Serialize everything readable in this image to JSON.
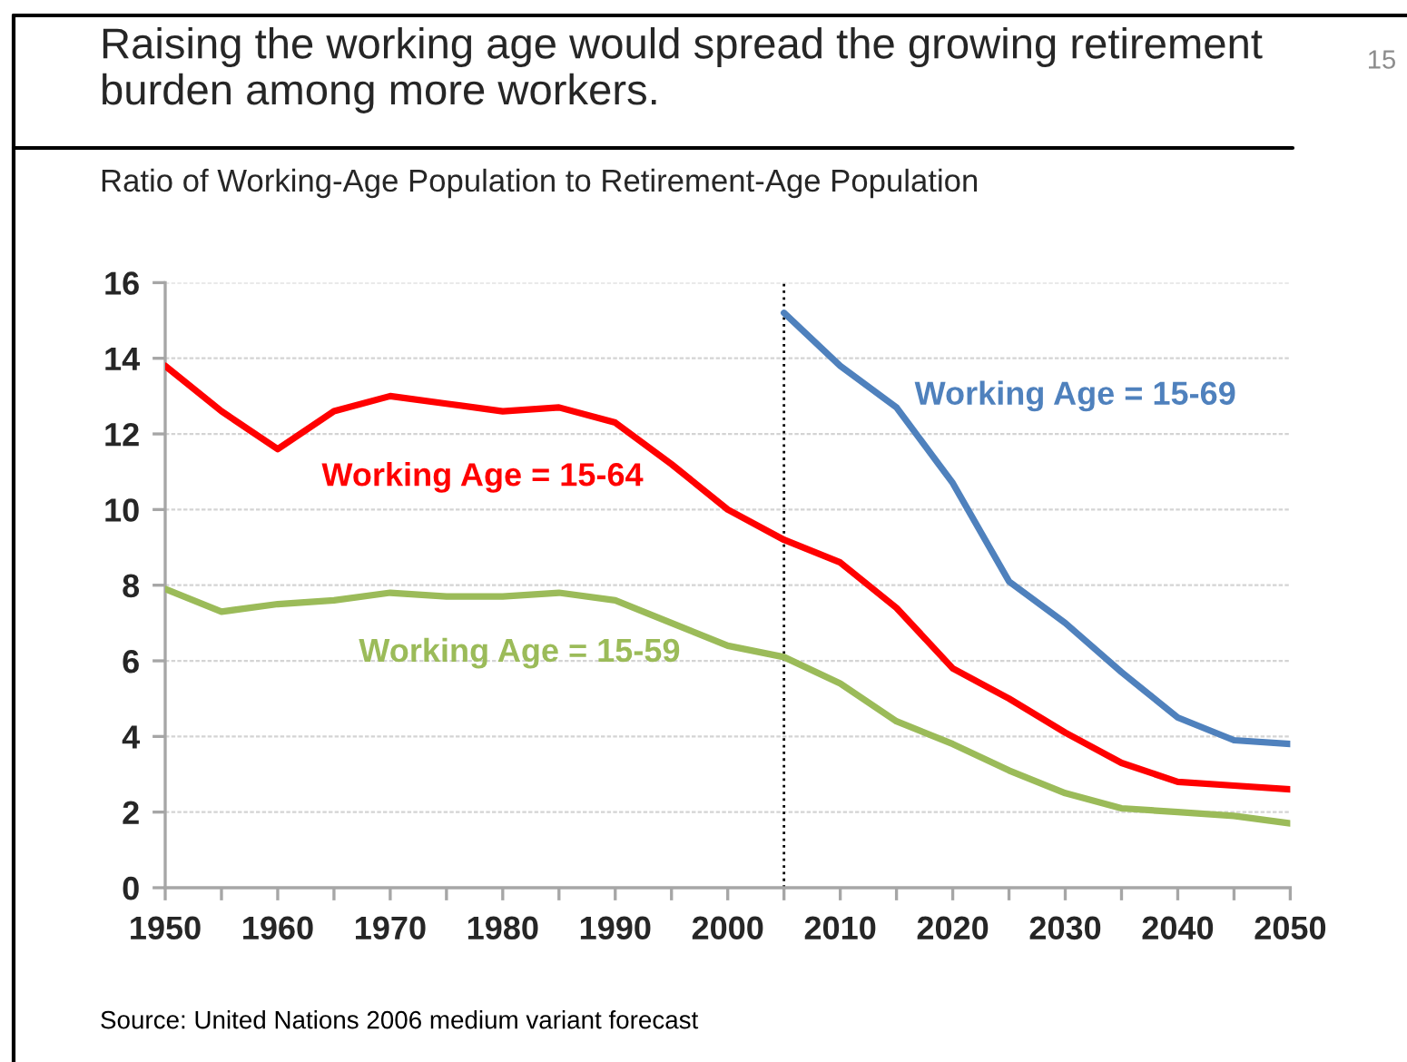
{
  "chart_data": {
    "type": "line",
    "title": "Raising the working age would spread the growing retirement burden among more workers.",
    "subtitle": "Ratio of Working-Age Population to Retirement-Age Population",
    "annotations": [
      "15",
      "Source: United Nations 2006 medium variant forecast"
    ],
    "x": [
      1950,
      1955,
      1960,
      1965,
      1970,
      1975,
      1980,
      1985,
      1990,
      1995,
      2000,
      2005,
      2010,
      2015,
      2020,
      2025,
      2030,
      2035,
      2040,
      2045,
      2050
    ],
    "series": [
      {
        "name": "Working Age = 15-64",
        "color": "#ff0000",
        "line_style": "solid",
        "values": [
          13.8,
          12.6,
          11.6,
          12.6,
          13.0,
          12.8,
          12.6,
          12.7,
          12.3,
          11.2,
          10.0,
          9.2,
          8.6,
          7.4,
          5.8,
          5.0,
          4.1,
          3.3,
          2.8,
          2.7,
          2.6
        ]
      },
      {
        "name": "Working Age = 15-59",
        "color": "#9bbb59",
        "line_style": "solid",
        "values": [
          7.9,
          7.3,
          7.5,
          7.6,
          7.8,
          7.7,
          7.7,
          7.8,
          7.6,
          7.0,
          6.4,
          6.1,
          5.4,
          4.4,
          3.8,
          3.1,
          2.5,
          2.1,
          2.0,
          1.9,
          1.7
        ]
      },
      {
        "name": "Working Age = 15-69",
        "color": "#4f81bd",
        "line_style": "solid",
        "x": [
          2005,
          2010,
          2015,
          2020,
          2025,
          2030,
          2035,
          2040,
          2045,
          2050
        ],
        "values": [
          15.2,
          13.8,
          12.7,
          10.7,
          8.1,
          7.0,
          5.7,
          4.5,
          3.9,
          3.8
        ]
      }
    ],
    "xlim": [
      1950,
      2050
    ],
    "xticks": [
      1950,
      {
        "value": 1955,
        "label": null
      },
      1960,
      {
        "value": 1965,
        "label": null
      },
      1970,
      {
        "value": 1975,
        "label": null
      },
      1980,
      {
        "value": 1985,
        "label": null
      },
      1990,
      {
        "value": 1995,
        "label": null
      },
      2000,
      {
        "value": 2005,
        "label": null
      },
      2010,
      {
        "value": 2015,
        "label": null
      },
      2020,
      {
        "value": 2025,
        "label": null
      },
      2030,
      {
        "value": 2035,
        "label": null
      },
      2040,
      {
        "value": 2045,
        "label": null
      },
      2050
    ],
    "ylim": [
      0,
      16
    ],
    "yticks": [
      0,
      2,
      4,
      6,
      8,
      10,
      12,
      14,
      16
    ],
    "grid": "y",
    "ref_lines": [
      {
        "axis": "x",
        "value": 2005,
        "color": "#000000",
        "line_style": "dotted"
      }
    ]
  }
}
